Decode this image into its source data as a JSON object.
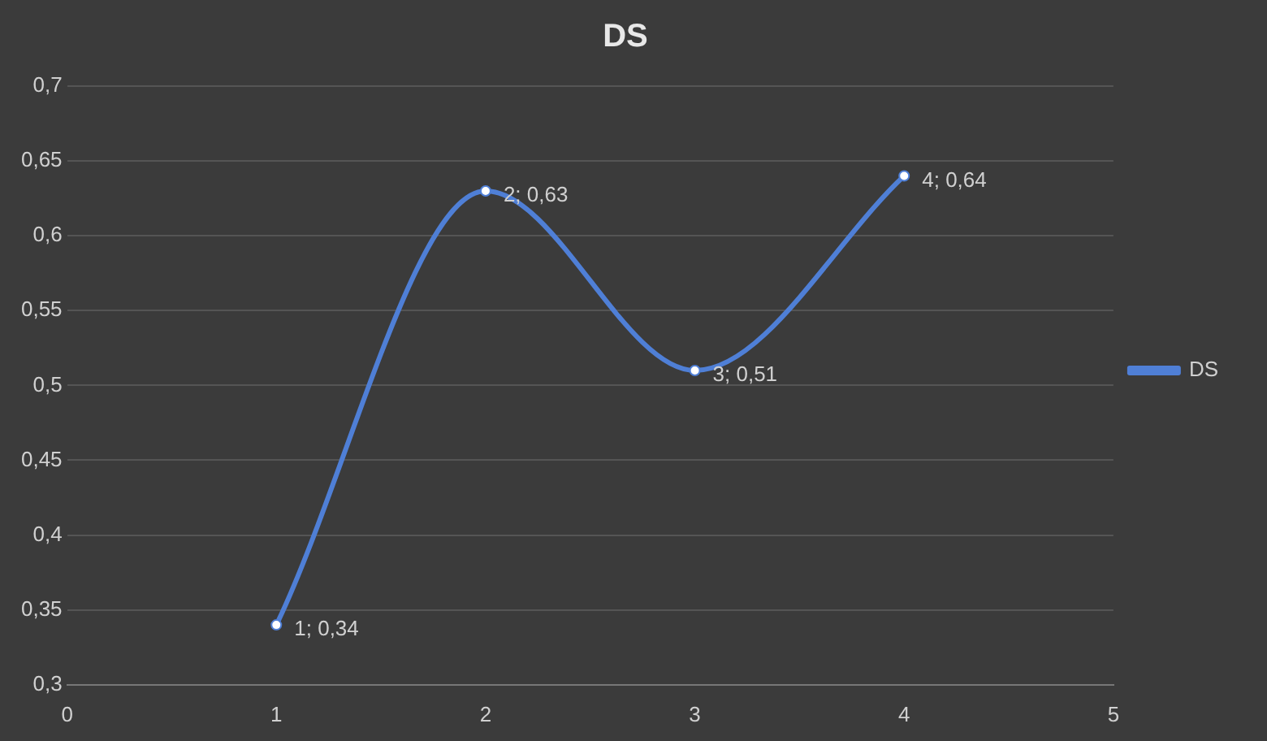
{
  "chart_data": {
    "type": "line",
    "title": "DS",
    "x": [
      1,
      2,
      3,
      4
    ],
    "series": [
      {
        "name": "DS",
        "color": "#4f7fd6",
        "values": [
          0.34,
          0.63,
          0.51,
          0.64
        ],
        "value_labels": [
          "1; 0,34",
          "2; 0,63",
          "3; 0,51",
          "4; 0,64"
        ]
      }
    ],
    "xlim": [
      0,
      5
    ],
    "xticks": [
      0,
      1,
      2,
      3,
      4,
      5
    ],
    "ylim": [
      0.3,
      0.7
    ],
    "yticks": [
      {
        "value": 0.3,
        "label": "0,3"
      },
      {
        "value": 0.35,
        "label": "0,35"
      },
      {
        "value": 0.4,
        "label": "0,4"
      },
      {
        "value": 0.45,
        "label": "0,45"
      },
      {
        "value": 0.5,
        "label": "0,5"
      },
      {
        "value": 0.55,
        "label": "0,55"
      },
      {
        "value": 0.6,
        "label": "0,6"
      },
      {
        "value": 0.65,
        "label": "0,65"
      },
      {
        "value": 0.7,
        "label": "0,7"
      }
    ],
    "grid": "y",
    "legend": "right",
    "marker": "circle",
    "line_style": "solid"
  }
}
